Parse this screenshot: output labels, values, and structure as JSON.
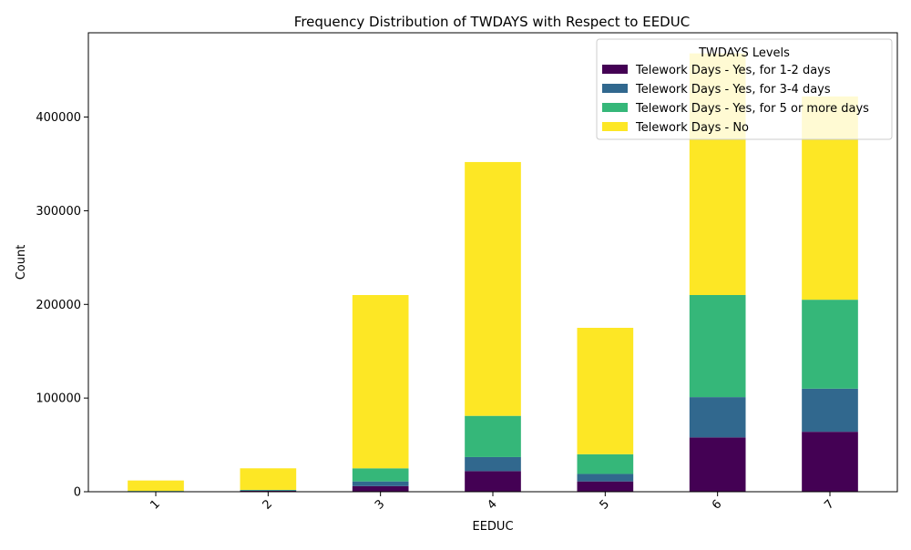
{
  "chart_data": {
    "type": "bar",
    "stacked": true,
    "title": "Frequency Distribution of TWDAYS with Respect to EEDUC",
    "xlabel": "EEDUC",
    "ylabel": "Count",
    "categories": [
      "1",
      "2",
      "3",
      "4",
      "5",
      "6",
      "7"
    ],
    "ylim": [
      0,
      490000
    ],
    "yticks": [
      0,
      100000,
      200000,
      300000,
      400000
    ],
    "ytick_labels": [
      "0",
      "100000",
      "200000",
      "300000",
      "400000"
    ],
    "legend_title": "TWDAYS Levels",
    "legend_position": "top-right",
    "grid": false,
    "series": [
      {
        "name": "Telework Days - Yes, for 1-2 days",
        "color": "#440154",
        "values": [
          400,
          1000,
          6000,
          22000,
          11000,
          58000,
          64000
        ]
      },
      {
        "name": "Telework Days - Yes, for 3-4 days",
        "color": "#31688e",
        "values": [
          200,
          500,
          5000,
          15000,
          8000,
          43000,
          46000
        ]
      },
      {
        "name": "Telework Days - Yes, for 5 or more days",
        "color": "#35b779",
        "values": [
          300,
          500,
          14000,
          44000,
          21000,
          109000,
          95000
        ]
      },
      {
        "name": "Telework Days - No",
        "color": "#fde725",
        "values": [
          11100,
          23000,
          185000,
          271000,
          135000,
          258000,
          217000
        ]
      }
    ]
  }
}
